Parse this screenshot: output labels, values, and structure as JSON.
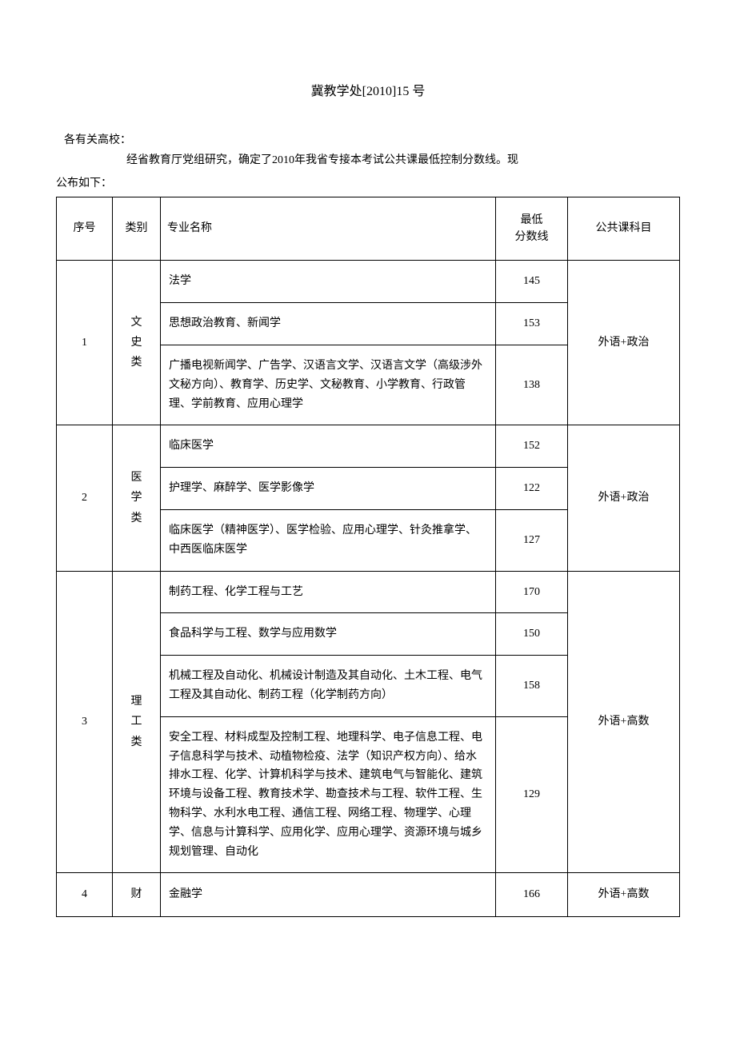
{
  "document": {
    "title": "冀教学处[2010]15 号",
    "salutation": "各有关高校：",
    "intro": "经省教育厅党组研究，确定了2010年我省专接本考试公共课最低控制分数线。现",
    "intro_cont": "公布如下："
  },
  "table": {
    "headers": {
      "seq": "序号",
      "category": "类别",
      "major": "专业名称",
      "score_line1": "最低",
      "score_line2": "分数线",
      "subject": "公共课科目"
    },
    "groups": [
      {
        "seq": "1",
        "category": "文史类",
        "subject": "外语+政治",
        "rows": [
          {
            "major": "法学",
            "score": "145"
          },
          {
            "major": "思想政治教育、新闻学",
            "score": "153"
          },
          {
            "major": "广播电视新闻学、广告学、汉语言文学、汉语言文学（高级涉外文秘方向）、教育学、历史学、文秘教育、小学教育、行政管理、学前教育、应用心理学",
            "score": "138"
          }
        ]
      },
      {
        "seq": "2",
        "category": "医学类",
        "subject": "外语+政治",
        "rows": [
          {
            "major": "临床医学",
            "score": "152"
          },
          {
            "major": "护理学、麻醉学、医学影像学",
            "score": "122"
          },
          {
            "major": "临床医学（精神医学）、医学检验、应用心理学、针灸推拿学、中西医临床医学",
            "score": "127"
          }
        ]
      },
      {
        "seq": "3",
        "category": "理工类",
        "subject": "外语+高数",
        "rows": [
          {
            "major": "制药工程、化学工程与工艺",
            "score": "170"
          },
          {
            "major": "食品科学与工程、数学与应用数学",
            "score": "150"
          },
          {
            "major": "机械工程及自动化、机械设计制造及其自动化、土木工程、电气工程及其自动化、制药工程（化学制药方向）",
            "score": "158"
          },
          {
            "major": "安全工程、材料成型及控制工程、地理科学、电子信息工程、电子信息科学与技术、动植物检疫、法学（知识产权方向）、给水排水工程、化学、计算机科学与技术、建筑电气与智能化、建筑环境与设备工程、教育技术学、勘查技术与工程、软件工程、生物科学、水利水电工程、通信工程、网络工程、物理学、心理学、信息与计算科学、应用化学、应用心理学、资源环境与城乡规划管理、自动化",
            "score": "129"
          }
        ]
      },
      {
        "seq": "4",
        "category": "财",
        "subject": "外语+高数",
        "rows": [
          {
            "major": "金融学",
            "score": "166"
          }
        ]
      }
    ]
  }
}
